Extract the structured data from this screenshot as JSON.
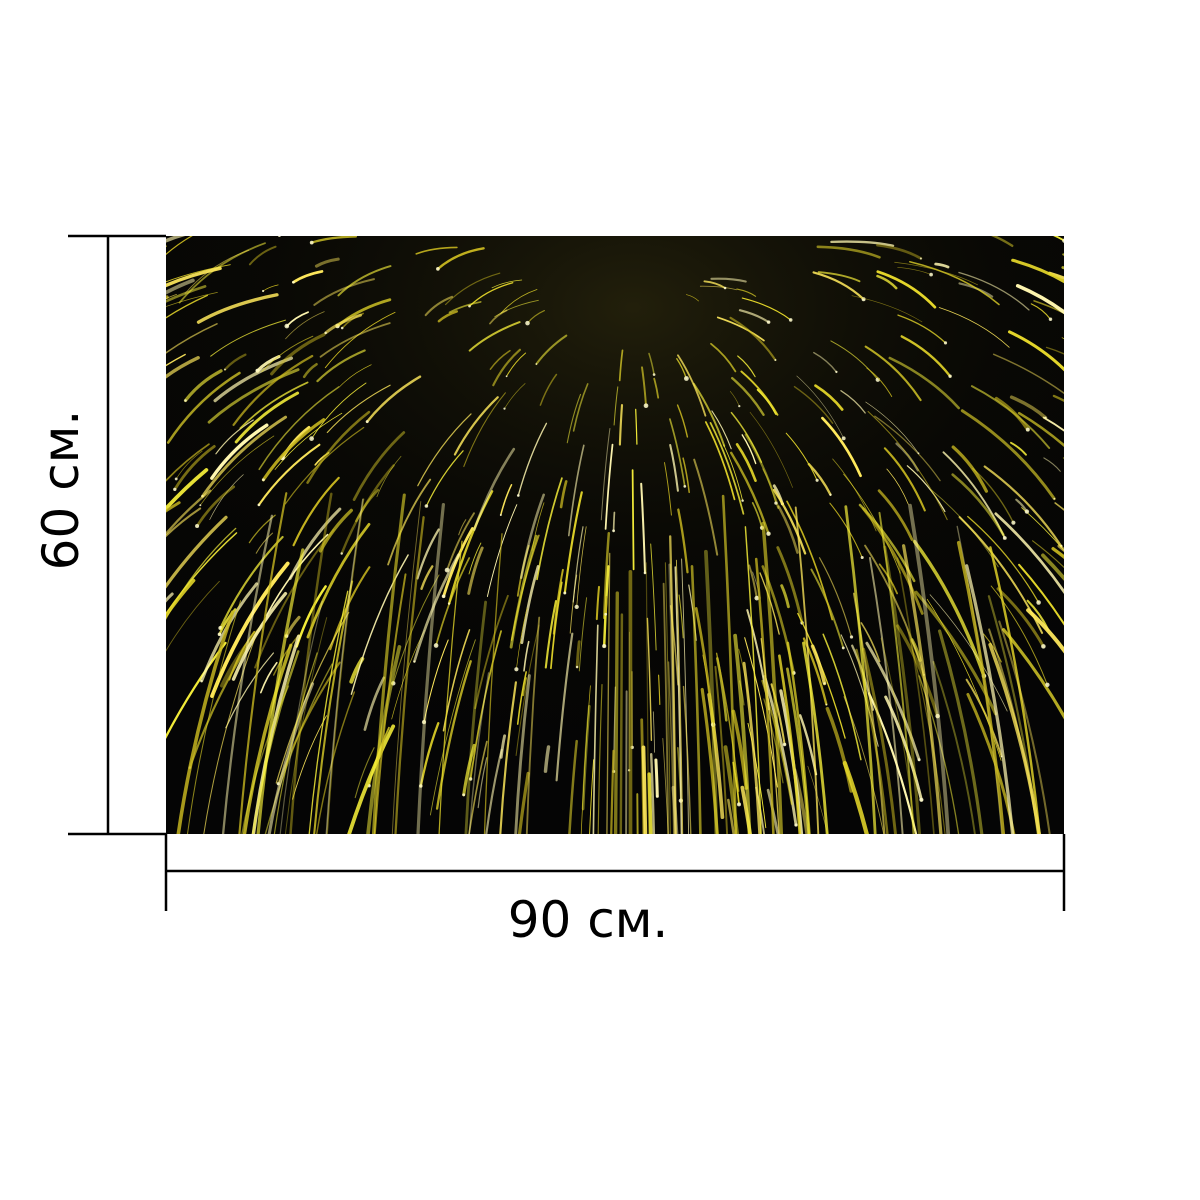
{
  "dimensions": {
    "height_label": "60 см.",
    "width_label": "90 см."
  },
  "product_image": {
    "background_color": "#050505",
    "spark_colors": [
      "#f7f03a",
      "#ffe95c",
      "#e6d82a",
      "#fff7b0",
      "#c9b820"
    ],
    "burst_center": "upper-center"
  },
  "colors": {
    "dimension_lines": "#000000",
    "page_background": "#ffffff"
  }
}
